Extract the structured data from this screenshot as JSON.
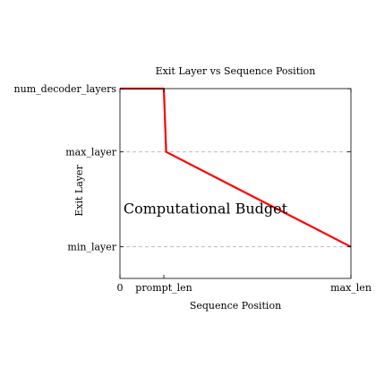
{
  "chart_data": {
    "type": "line",
    "title": "Exit Layer vs Sequence Position",
    "xlabel": "Sequence Position",
    "ylabel": "Exit Layer",
    "xlim": [
      0,
      10
    ],
    "ylim": [
      0,
      6
    ],
    "x_ticks": [
      {
        "value": 0,
        "label": "0"
      },
      {
        "value": 1.9,
        "label": "prompt_len"
      },
      {
        "value": 10,
        "label": "max_len"
      }
    ],
    "y_ticks": [
      {
        "value": 1,
        "label": "min_layer"
      },
      {
        "value": 4,
        "label": "max_layer"
      },
      {
        "value": 6,
        "label": "num_decoder_layers"
      }
    ],
    "grid": "horizontal dashed at y ticks",
    "series": [
      {
        "color": "#ff0000",
        "points": [
          [
            0,
            6
          ],
          [
            1.9,
            6
          ],
          [
            2.0,
            4
          ],
          [
            10,
            1
          ]
        ]
      }
    ],
    "annotations": [
      {
        "text": "Computational Budget",
        "x": 3.7,
        "y": 2.2
      }
    ]
  }
}
